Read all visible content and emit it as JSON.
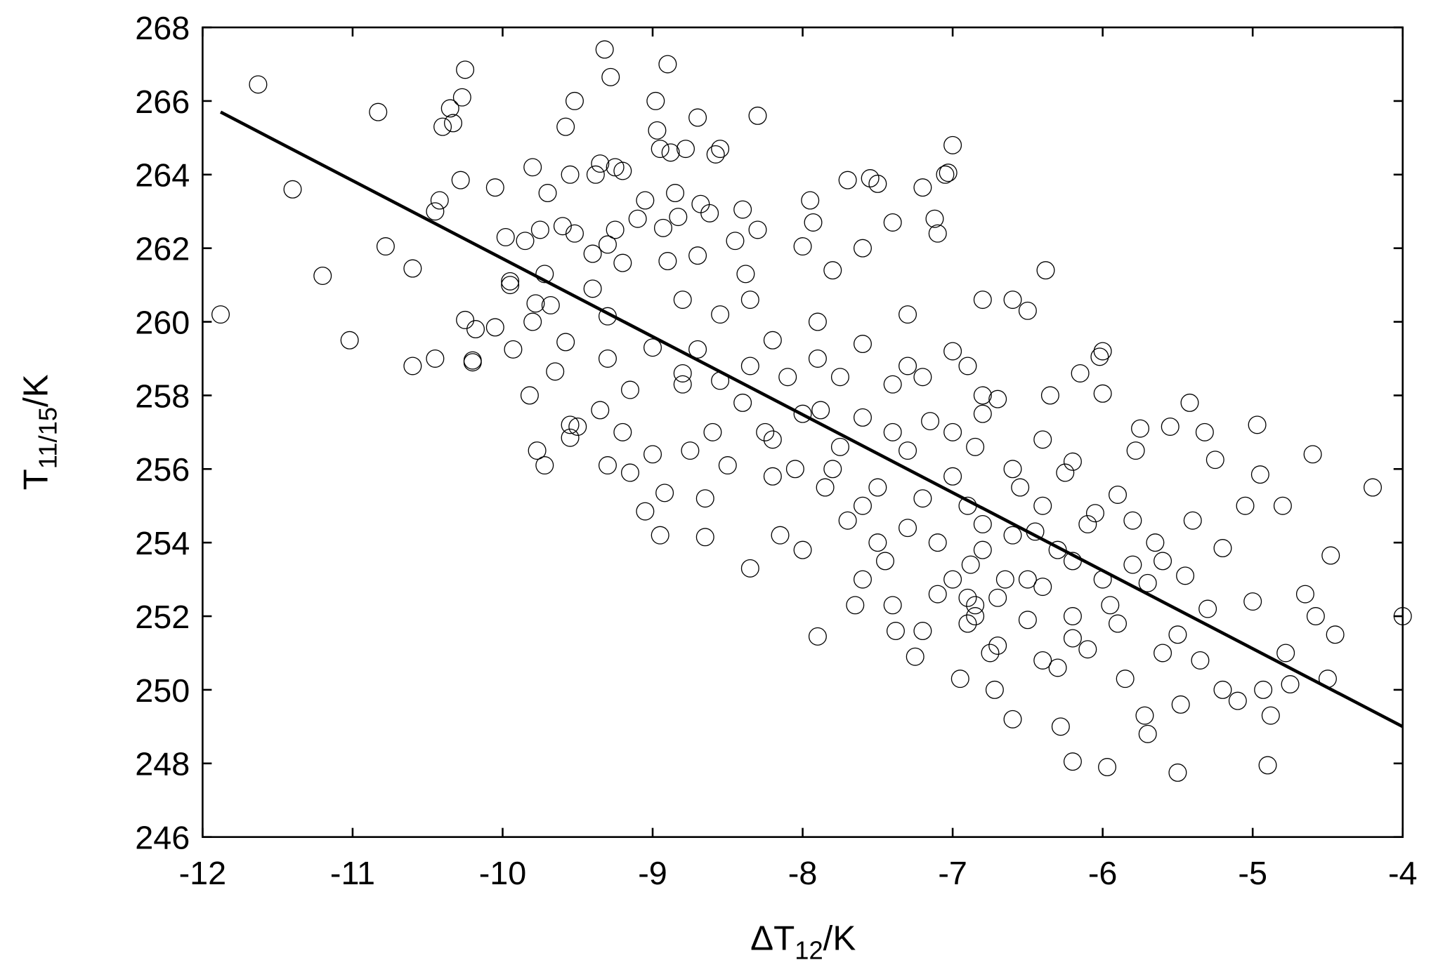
{
  "chart_data": {
    "type": "scatter",
    "xlabel": {
      "main": "ΔT",
      "sub": "12",
      "rest": "/K"
    },
    "ylabel": {
      "main": "T",
      "sub": "11/15",
      "rest": "/K"
    },
    "xlim": [
      -12,
      -4
    ],
    "ylim": [
      246,
      268
    ],
    "xticks": [
      -12,
      -11,
      -10,
      -9,
      -8,
      -7,
      -6,
      -5,
      -4
    ],
    "yticks": [
      246,
      248,
      250,
      252,
      254,
      256,
      258,
      260,
      262,
      264,
      266,
      268
    ],
    "grid": false,
    "series": [
      {
        "color": "#000000",
        "x": [
          -11.88,
          -11.63,
          -11.4,
          -11.2,
          -11.02,
          -10.83,
          -10.78,
          -10.6,
          -10.6,
          -10.45,
          -10.42,
          -10.4,
          -10.35,
          -10.33,
          -10.27,
          -10.25,
          -10.28,
          -10.25,
          -10.2,
          -10.18,
          -10.2,
          -10.45,
          -10.05,
          -10.05,
          -9.98,
          -9.95,
          -9.93,
          -9.95,
          -9.85,
          -9.8,
          -9.75,
          -9.72,
          -9.78,
          -9.8,
          -9.82,
          -9.77,
          -9.72,
          -9.68,
          -9.7,
          -9.65,
          -9.6,
          -9.58,
          -9.55,
          -9.52,
          -9.52,
          -9.58,
          -9.55,
          -9.55,
          -9.5,
          -9.4,
          -9.4,
          -9.38,
          -9.35,
          -9.32,
          -9.3,
          -9.28,
          -9.3,
          -9.3,
          -9.35,
          -9.3,
          -9.25,
          -9.2,
          -9.25,
          -9.2,
          -9.15,
          -9.2,
          -9.15,
          -9.1,
          -9.05,
          -9.0,
          -9.0,
          -9.05,
          -8.98,
          -8.97,
          -8.95,
          -8.93,
          -8.9,
          -8.88,
          -8.9,
          -8.92,
          -8.95,
          -8.85,
          -8.83,
          -8.8,
          -8.8,
          -8.78,
          -8.75,
          -8.7,
          -8.68,
          -8.7,
          -8.7,
          -8.65,
          -8.65,
          -8.62,
          -8.58,
          -8.55,
          -8.55,
          -8.55,
          -8.5,
          -8.45,
          -8.4,
          -8.38,
          -8.35,
          -8.35,
          -8.3,
          -8.3,
          -8.35,
          -8.25,
          -8.2,
          -8.2,
          -8.15,
          -8.1,
          -8.05,
          -8.0,
          -8.0,
          -7.95,
          -7.93,
          -7.9,
          -7.88,
          -7.85,
          -7.9,
          -7.8,
          -7.75,
          -7.75,
          -7.7,
          -7.7,
          -7.65,
          -7.6,
          -7.6,
          -7.55,
          -7.5,
          -7.5,
          -7.45,
          -7.4,
          -7.4,
          -7.38,
          -7.3,
          -7.3,
          -7.25,
          -7.2,
          -7.15,
          -7.12,
          -7.1,
          -7.1,
          -7.05,
          -7.03,
          -7.0,
          -7.0,
          -6.95,
          -6.9,
          -6.88,
          -6.85,
          -6.85,
          -6.8,
          -6.8,
          -6.75,
          -6.72,
          -6.7,
          -6.65,
          -6.6,
          -6.6,
          -6.55,
          -6.5,
          -6.5,
          -6.45,
          -6.4,
          -6.38,
          -6.35,
          -6.3,
          -6.28,
          -6.25,
          -6.2,
          -6.2,
          -6.15,
          -6.1,
          -6.05,
          -6.02,
          -6.0,
          -6.0,
          -5.97,
          -5.95,
          -5.9,
          -5.85,
          -5.8,
          -5.78,
          -5.75,
          -5.72,
          -5.7,
          -5.65,
          -5.6,
          -5.55,
          -5.5,
          -5.48,
          -5.45,
          -5.42,
          -5.4,
          -5.35,
          -5.32,
          -5.3,
          -5.25,
          -5.2,
          -5.2,
          -5.1,
          -5.05,
          -5.0,
          -4.97,
          -4.95,
          -4.93,
          -4.9,
          -4.88,
          -4.8,
          -4.78,
          -4.75,
          -4.65,
          -4.6,
          -4.58,
          -4.5,
          -4.48,
          -4.45,
          -4.2,
          -4.0,
          -7.8,
          -7.6,
          -7.5,
          -7.3,
          -7.2,
          -7.1,
          -7.0,
          -6.9,
          -6.8,
          -6.7,
          -6.6,
          -6.5,
          -6.4,
          -6.3,
          -6.2,
          -6.1,
          -6.0,
          -5.9,
          -5.8,
          -5.7,
          -5.6,
          -5.5,
          -7.4,
          -7.2,
          -7.0,
          -6.8,
          -6.6,
          -6.4,
          -6.2,
          -7.6,
          -7.4,
          -7.2,
          -6.9,
          -6.7,
          -6.4,
          -6.2,
          -8.0,
          -8.2,
          -8.4,
          -8.6,
          -8.8,
          -7.9,
          -7.6,
          -7.3,
          -7.0,
          -6.8,
          -6.9,
          -6.85
        ],
        "values": [
          260.2,
          266.45,
          263.6,
          261.25,
          259.5,
          265.7,
          262.05,
          261.45,
          258.8,
          263.0,
          263.3,
          265.3,
          265.8,
          265.4,
          266.1,
          266.85,
          263.85,
          260.05,
          258.95,
          259.8,
          258.9,
          259.0,
          263.65,
          259.85,
          262.3,
          261.1,
          259.25,
          261.0,
          262.2,
          264.2,
          262.5,
          261.3,
          260.5,
          260.0,
          258.0,
          256.5,
          256.1,
          260.45,
          263.5,
          258.65,
          262.6,
          265.3,
          264.0,
          266.0,
          262.4,
          259.45,
          257.2,
          256.85,
          257.15,
          261.85,
          260.9,
          264.0,
          264.3,
          267.4,
          262.1,
          266.65,
          260.15,
          259.0,
          257.6,
          256.1,
          264.2,
          264.1,
          262.5,
          261.6,
          258.15,
          257.0,
          255.9,
          262.8,
          263.3,
          259.3,
          256.4,
          254.85,
          266.0,
          265.2,
          264.7,
          262.55,
          267.0,
          264.6,
          261.65,
          255.35,
          254.2,
          263.5,
          262.85,
          260.6,
          258.3,
          264.7,
          256.5,
          265.55,
          263.2,
          261.8,
          259.25,
          255.2,
          254.15,
          262.95,
          264.55,
          264.7,
          260.2,
          258.4,
          256.1,
          262.2,
          263.05,
          261.3,
          260.6,
          258.8,
          265.6,
          262.5,
          253.3,
          257.0,
          259.5,
          255.8,
          254.2,
          258.5,
          256.0,
          262.05,
          253.8,
          263.3,
          262.7,
          260.0,
          257.6,
          255.5,
          251.45,
          261.4,
          258.5,
          256.6,
          263.85,
          254.6,
          252.3,
          262.0,
          257.4,
          263.9,
          263.75,
          255.5,
          253.5,
          262.7,
          258.3,
          251.6,
          260.2,
          254.4,
          250.9,
          263.65,
          257.3,
          262.8,
          262.4,
          252.6,
          264.0,
          264.05,
          264.8,
          255.8,
          250.3,
          258.8,
          253.4,
          252.3,
          256.6,
          260.6,
          254.5,
          251.0,
          250.0,
          257.9,
          253.0,
          249.2,
          260.6,
          255.5,
          251.9,
          260.3,
          254.3,
          252.8,
          261.4,
          258.0,
          250.6,
          249.0,
          255.9,
          253.5,
          248.05,
          258.6,
          251.1,
          254.8,
          259.05,
          259.2,
          258.05,
          247.9,
          252.3,
          255.3,
          250.3,
          253.4,
          256.5,
          257.1,
          249.3,
          248.8,
          254.0,
          251.0,
          257.15,
          247.75,
          249.6,
          253.1,
          257.8,
          254.6,
          250.8,
          257.0,
          252.2,
          256.25,
          250.0,
          253.85,
          249.7,
          255.0,
          252.4,
          257.2,
          255.85,
          250.0,
          247.95,
          249.3,
          255.0,
          251.0,
          250.15,
          252.6,
          256.4,
          252.0,
          250.3,
          253.65,
          251.5,
          255.5,
          252.0,
          256.0,
          255.0,
          254.0,
          256.5,
          255.2,
          254.0,
          253.0,
          255.0,
          253.8,
          252.5,
          254.2,
          253.0,
          255.0,
          253.8,
          252.0,
          254.5,
          253.0,
          251.8,
          254.6,
          252.9,
          253.5,
          251.5,
          257.0,
          258.5,
          257.0,
          257.5,
          256.0,
          256.8,
          256.2,
          253.0,
          252.3,
          251.6,
          251.8,
          251.2,
          250.8,
          251.4,
          257.5,
          256.8,
          257.8,
          257.0,
          258.6,
          259.0,
          259.4,
          258.8,
          259.2,
          258.0,
          252.5,
          252.0
        ]
      },
      {
        "type": "line",
        "color": "#000000",
        "x": [
          -11.88,
          -4.0
        ],
        "values": [
          265.7,
          249.0
        ]
      }
    ]
  }
}
